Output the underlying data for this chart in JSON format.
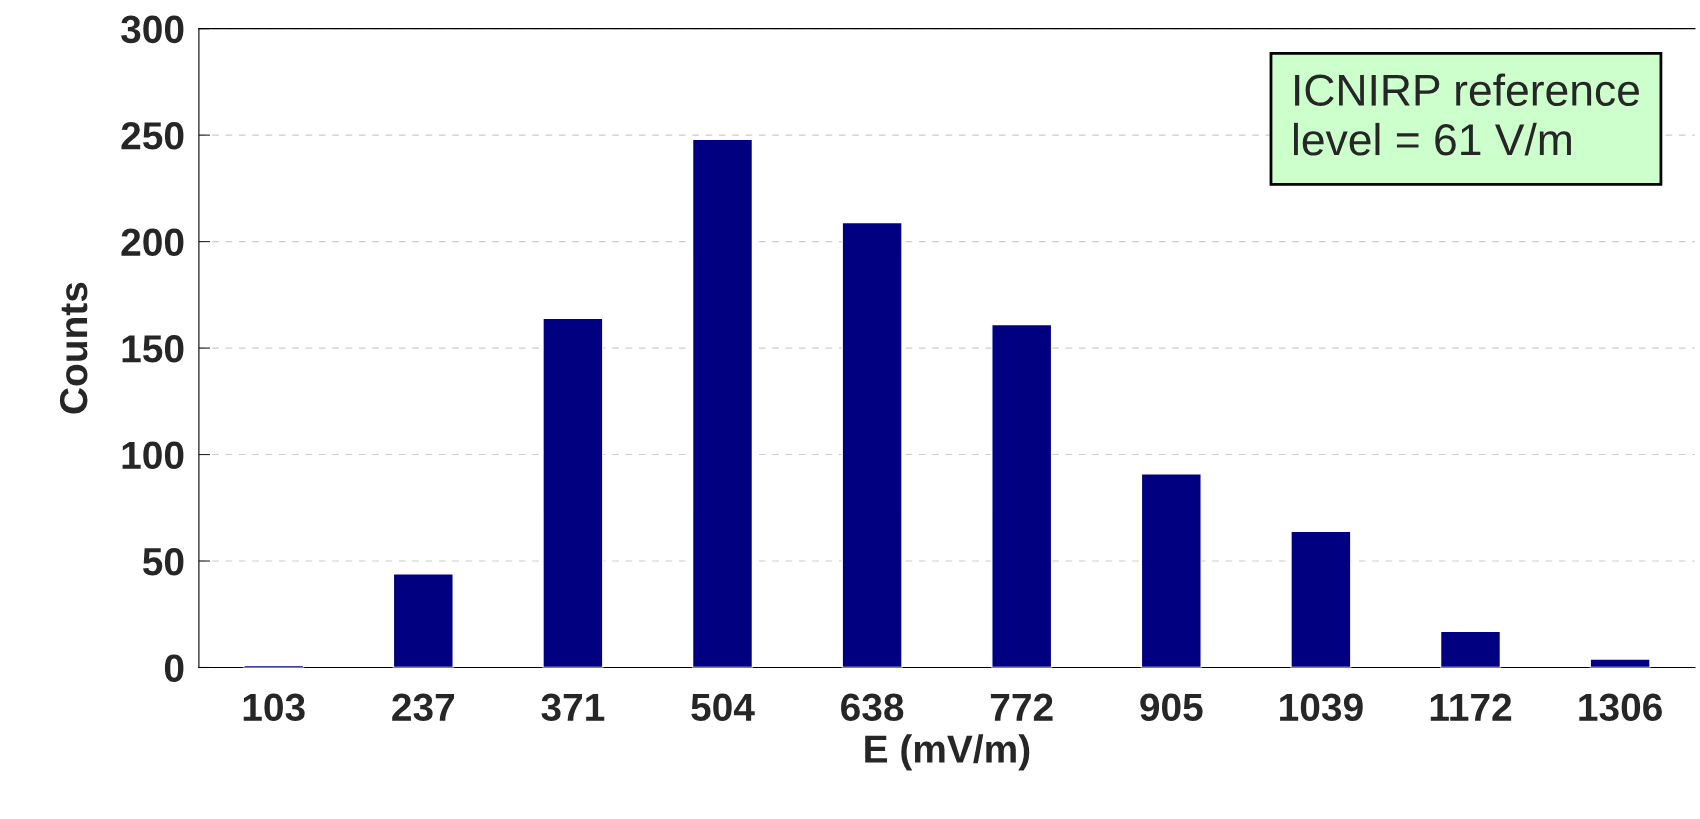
{
  "chart_data": {
    "type": "bar",
    "xlabel": "E (mV/m)",
    "ylabel": "Counts",
    "categories": [
      "103",
      "237",
      "371",
      "504",
      "638",
      "772",
      "905",
      "1039",
      "1172",
      "1306"
    ],
    "values": [
      1,
      44,
      164,
      248,
      209,
      161,
      91,
      64,
      17,
      4
    ],
    "color": "#000080",
    "ylim": [
      0,
      300
    ],
    "yticks": [
      0,
      50,
      100,
      150,
      200,
      250,
      300
    ],
    "grid": "y",
    "annotations": [
      "ICNIRP reference\nlevel = 61 V/m"
    ]
  }
}
